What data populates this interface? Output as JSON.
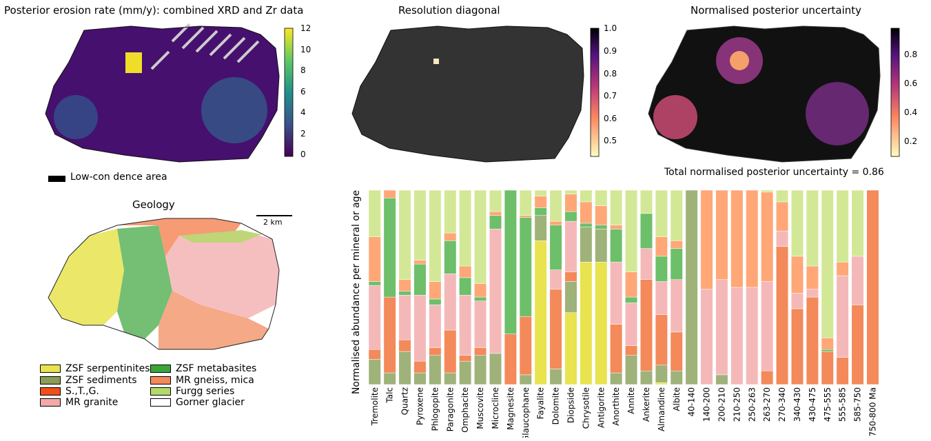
{
  "maps": {
    "erosion": {
      "title": "Posterior erosion rate (mm/y): combined XRD and Zr data",
      "colorbar_ticks": [
        "12",
        "10",
        "8",
        "6",
        "4",
        "2",
        "0"
      ],
      "colormap": "viridis"
    },
    "resolution": {
      "title": "Resolution diagonal",
      "colorbar_ticks": [
        "1.0",
        "0.9",
        "0.8",
        "0.7",
        "0.6",
        "0.5"
      ],
      "colormap": "magma"
    },
    "uncertainty": {
      "title": "Normalised posterior uncertainty",
      "colorbar_ticks": [
        "0.8",
        "0.6",
        "0.4",
        "0.2"
      ],
      "colormap": "magma"
    }
  },
  "low_conf_label": "Low-con dence area",
  "geology": {
    "title": "Geology",
    "scalebar": "2 km",
    "legend": [
      {
        "label": "ZSF serpentinites",
        "color": "#e8e34f"
      },
      {
        "label": "ZSF metabasites",
        "color": "#3aa63a"
      },
      {
        "label": "ZSF sediments",
        "color": "#8c9b56"
      },
      {
        "label": "MR gneiss, mica",
        "color": "#f4895a"
      },
      {
        "label": "S.,T.,G.",
        "color": "#f04e1a"
      },
      {
        "label": "Furgg series",
        "color": "#b5d86b"
      },
      {
        "label": "MR granite",
        "color": "#f5a8a8"
      },
      {
        "label": "Gorner glacier",
        "color": "#ffffff"
      }
    ]
  },
  "chart_data": {
    "type": "bar",
    "stacked": true,
    "annotation": "Total normalised posterior uncertainty = 0.86",
    "ylabel": "Normalised abundance per mineral or age",
    "ylim": [
      0,
      1
    ],
    "categories": [
      "Tremolite",
      "Talc",
      "Quartz",
      "Pyroxene",
      "Phlogopite",
      "Paragonite",
      "Omphacite",
      "Muscovite",
      "Microcline",
      "Magnesite",
      "Glaucophane",
      "Fayalite",
      "Dolomite",
      "Diopside",
      "Chrysotile",
      "Antigorite",
      "Anorthite",
      "Annite",
      "Ankerite",
      "Almandine",
      "Albite",
      "40-140",
      "140-200",
      "200-210",
      "210-250",
      "250-263",
      "263-270",
      "270-340",
      "340-430",
      "430-475",
      "475-555",
      "555-585",
      "585-750",
      "750-800 Ma"
    ],
    "series": [
      {
        "color": "#e8e34f",
        "values": [
          0.0,
          0.0,
          0.0,
          0.0,
          0.0,
          0.0,
          0.0,
          0.0,
          0.0,
          0.0,
          0.0,
          0.74,
          0.0,
          0.37,
          0.63,
          0.63,
          0.0,
          0.0,
          0.0,
          0.01,
          0.0,
          0.0,
          0.0,
          0.0,
          0.0,
          0.0,
          0.0,
          0.0,
          0.0,
          0.0,
          0.0,
          0.0,
          0.0,
          0.0
        ]
      },
      {
        "color": "#9fb27a",
        "values": [
          0.13,
          0.06,
          0.17,
          0.06,
          0.15,
          0.06,
          0.12,
          0.15,
          0.16,
          0.0,
          0.05,
          0.13,
          0.08,
          0.16,
          0.18,
          0.17,
          0.06,
          0.15,
          0.07,
          0.09,
          0.07,
          1.0,
          0.0,
          0.05,
          0.0,
          0.0,
          0.0,
          0.0,
          0.0,
          0.0,
          0.0,
          0.0,
          0.0,
          0.0
        ]
      },
      {
        "color": "#f4895a",
        "values": [
          0.05,
          0.39,
          0.06,
          0.06,
          0.04,
          0.22,
          0.03,
          0.04,
          0.0,
          0.26,
          0.3,
          0.0,
          0.41,
          0.05,
          0.0,
          0.0,
          0.25,
          0.05,
          0.47,
          0.26,
          0.2,
          0.0,
          0.0,
          0.0,
          0.0,
          0.0,
          0.07,
          0.71,
          0.39,
          0.45,
          0.17,
          0.14,
          0.41,
          1.0
        ]
      },
      {
        "color": "#f5b8b8",
        "values": [
          0.33,
          0.0,
          0.23,
          0.34,
          0.22,
          0.29,
          0.31,
          0.24,
          0.64,
          0.0,
          0.0,
          0.0,
          0.1,
          0.26,
          0.0,
          0.0,
          0.32,
          0.22,
          0.16,
          0.17,
          0.27,
          0.0,
          0.49,
          0.49,
          0.5,
          0.5,
          0.46,
          0.08,
          0.08,
          0.04,
          0.0,
          0.42,
          0.25,
          0.0
        ]
      },
      {
        "color": "#6dbf6a",
        "values": [
          0.02,
          0.51,
          0.02,
          0.16,
          0.03,
          0.17,
          0.09,
          0.02,
          0.07,
          0.74,
          0.51,
          0.04,
          0.23,
          0.05,
          0.02,
          0.02,
          0.17,
          0.03,
          0.18,
          0.13,
          0.16,
          0.0,
          0.0,
          0.0,
          0.0,
          0.0,
          0.0,
          0.0,
          0.0,
          0.0,
          0.01,
          0.0,
          0.0,
          0.0
        ]
      },
      {
        "color": "#ffa777",
        "values": [
          0.23,
          0.04,
          0.06,
          0.02,
          0.09,
          0.04,
          0.06,
          0.07,
          0.02,
          0.0,
          0.01,
          0.06,
          0.02,
          0.09,
          0.11,
          0.1,
          0.02,
          0.13,
          0.0,
          0.1,
          0.04,
          0.0,
          0.51,
          0.46,
          0.5,
          0.5,
          0.46,
          0.15,
          0.19,
          0.12,
          0.06,
          0.07,
          0.0,
          0.0
        ]
      },
      {
        "color": "#d3e896",
        "values": [
          0.24,
          0.0,
          0.46,
          0.36,
          0.47,
          0.22,
          0.39,
          0.48,
          0.11,
          0.0,
          0.13,
          0.03,
          0.16,
          0.02,
          0.06,
          0.08,
          0.18,
          0.42,
          0.12,
          0.24,
          0.26,
          0.0,
          0.0,
          0.0,
          0.0,
          0.0,
          0.01,
          0.06,
          0.34,
          0.39,
          0.76,
          0.37,
          0.34,
          0.0
        ]
      }
    ]
  }
}
